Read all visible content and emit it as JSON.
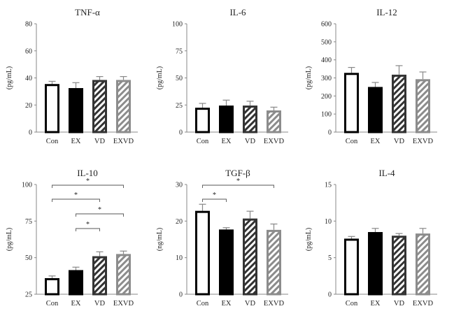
{
  "chart_data": [
    {
      "type": "bar",
      "title": "TNF-α",
      "ylabel": "(pg/mL)",
      "categories": [
        "Con",
        "EX",
        "VD",
        "EXVD"
      ],
      "values": [
        35.5,
        32.5,
        38.5,
        38.5
      ],
      "errors": [
        2,
        4,
        2.5,
        2.5
      ],
      "ylim": [
        0,
        80
      ],
      "yticks": [
        0,
        20,
        40,
        60,
        80
      ],
      "significance": []
    },
    {
      "type": "bar",
      "title": "IL-6",
      "ylabel": "(pg/mL)",
      "categories": [
        "Con",
        "EX",
        "VD",
        "EXVD"
      ],
      "values": [
        22.5,
        24.5,
        24.5,
        20
      ],
      "errors": [
        4,
        5,
        4,
        3
      ],
      "ylim": [
        0,
        100
      ],
      "yticks": [
        0,
        25,
        50,
        75,
        100
      ],
      "significance": []
    },
    {
      "type": "bar",
      "title": "IL-12",
      "ylabel": "(pg/mL)",
      "categories": [
        "Con",
        "EX",
        "VD",
        "EXVD"
      ],
      "values": [
        328,
        250,
        318,
        293
      ],
      "errors": [
        30,
        25,
        50,
        40
      ],
      "ylim": [
        0,
        600
      ],
      "yticks": [
        0,
        100,
        200,
        300,
        400,
        500,
        600
      ],
      "significance": []
    },
    {
      "type": "bar",
      "title": "IL-10",
      "ylabel": "(pg/mL)",
      "categories": [
        "Con",
        "EX",
        "VD",
        "EXVD"
      ],
      "values": [
        36,
        41.5,
        51,
        52.5
      ],
      "errors": [
        1.5,
        2,
        3,
        2
      ],
      "ylim": [
        25,
        100
      ],
      "yticks": [
        25,
        50,
        75,
        100
      ],
      "significance": [
        {
          "from": 0,
          "to": 3,
          "label": "*",
          "level": 0
        },
        {
          "from": 0,
          "to": 2,
          "label": "*",
          "level": 1
        },
        {
          "from": 1,
          "to": 3,
          "label": "*",
          "level": 2
        },
        {
          "from": 1,
          "to": 2,
          "label": "*",
          "level": 3
        }
      ]
    },
    {
      "type": "bar",
      "title": "TGF-β",
      "ylabel": "(ng/mL)",
      "categories": [
        "Con",
        "EX",
        "VD",
        "EXVD"
      ],
      "values": [
        22.8,
        17.7,
        20.7,
        17.6
      ],
      "errors": [
        1.8,
        0.5,
        2,
        1.6
      ],
      "ylim": [
        0,
        30
      ],
      "yticks": [
        0,
        10,
        20,
        30
      ],
      "significance": [
        {
          "from": 0,
          "to": 3,
          "label": "*",
          "level": 0
        },
        {
          "from": 0,
          "to": 1,
          "label": "*",
          "level": 1
        }
      ]
    },
    {
      "type": "bar",
      "title": "IL-4",
      "ylabel": "(pg/mL)",
      "categories": [
        "Con",
        "EX",
        "VD",
        "EXVD"
      ],
      "values": [
        7.6,
        8.5,
        8,
        8.3
      ],
      "errors": [
        0.3,
        0.5,
        0.3,
        0.7
      ],
      "ylim": [
        0,
        15
      ],
      "yticks": [
        0,
        5,
        10,
        15
      ],
      "significance": []
    }
  ],
  "bar_styles": [
    {
      "category": "Con",
      "fill": "#ffffff",
      "stroke": "#000000",
      "hatch": false
    },
    {
      "category": "EX",
      "fill": "#000000",
      "stroke": "#000000",
      "hatch": false
    },
    {
      "category": "VD",
      "fill": "#ffffff",
      "stroke": "#333333",
      "hatch": true,
      "hatch_color": "#333333"
    },
    {
      "category": "EXVD",
      "fill": "#ffffff",
      "stroke": "#8c8c8c",
      "hatch": true,
      "hatch_color": "#8c8c8c"
    }
  ],
  "colors": {
    "axis": "#888888",
    "error_bar": "#888888",
    "bracket": "#555555"
  }
}
